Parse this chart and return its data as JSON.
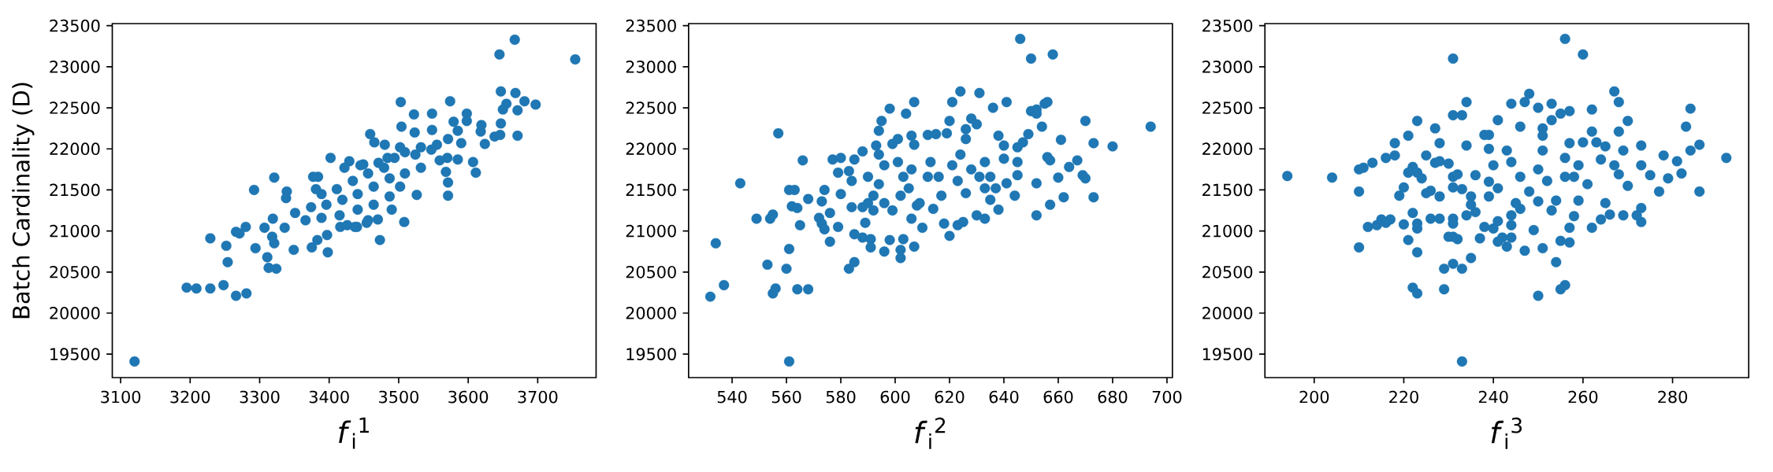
{
  "chart_data": [
    {
      "type": "scatter",
      "xlabel": "*f*$_{i}$$^{1}$",
      "ylabel": "Batch Cardinality (D)",
      "color": "#1f77b4",
      "marker": "circle",
      "xlim": [
        3088,
        3784
      ],
      "ylim": [
        19214,
        23526
      ],
      "xticks": [
        3100,
        3200,
        3300,
        3400,
        3500,
        3600,
        3700
      ],
      "yticks": [
        19500,
        20000,
        20500,
        21000,
        21500,
        22000,
        22500,
        23000,
        23500
      ],
      "x": [
        3120,
        3754,
        3667,
        3645,
        3647,
        3668,
        3697,
        3681,
        3671,
        3655,
        3650,
        3647,
        3646,
        3638,
        3671,
        3624,
        3618,
        3619,
        3607,
        3611,
        3598,
        3598,
        3574,
        3579,
        3585,
        3590,
        3585,
        3571,
        3568,
        3571,
        3571,
        3548,
        3548,
        3522,
        3503,
        3504,
        3523,
        3526,
        3508,
        3490,
        3473,
        3459,
        3480,
        3465,
        3402,
        3440,
        3454,
        3470,
        3398,
        3349,
        3375,
        3383,
        3397,
        3416,
        3324,
        3313,
        3311,
        3321,
        3318,
        3307,
        3319,
        3321,
        3339,
        3338,
        3336,
        3292,
        3294,
        3280,
        3271,
        3266,
        3229,
        3252,
        3254,
        3248,
        3229,
        3209,
        3195,
        3266,
        3281,
        3384,
        3377,
        3484,
        3429,
        3449,
        3471,
        3494,
        3509,
        3532,
        3555,
        3559,
        3532,
        3509,
        3487,
        3464,
        3441,
        3419,
        3396,
        3374,
        3351,
        3366,
        3389,
        3415,
        3441,
        3464,
        3487,
        3502,
        3479,
        3456,
        3434,
        3411,
        3389,
        3381,
        3422,
        3445,
        3524,
        3502,
        3570,
        3547,
        3426,
        3456,
        3437
      ],
      "values": [
        19410,
        23090,
        23330,
        23150,
        22700,
        22680,
        22540,
        22580,
        22470,
        22550,
        22480,
        22310,
        22170,
        22150,
        22160,
        22060,
        22210,
        22290,
        21840,
        21710,
        22430,
        22340,
        22580,
        22330,
        22220,
        22070,
        21870,
        22120,
        21720,
        21590,
        21430,
        22430,
        22230,
        22420,
        22570,
        22270,
        22200,
        21440,
        21110,
        21260,
        20890,
        22180,
        22050,
        22080,
        21890,
        21050,
        21100,
        21140,
        20740,
        20770,
        20800,
        20890,
        20950,
        21050,
        20540,
        20550,
        20680,
        20850,
        20930,
        21040,
        21150,
        21650,
        21480,
        21400,
        21040,
        21500,
        20790,
        21050,
        20970,
        20990,
        20910,
        20820,
        20620,
        20340,
        20300,
        20300,
        20310,
        20210,
        20240,
        21660,
        21660,
        21890,
        21850,
        21810,
        21830,
        21890,
        21960,
        22020,
        22050,
        21860,
        21770,
        21700,
        21640,
        21540,
        21450,
        21380,
        21320,
        21290,
        21220,
        21130,
        21160,
        21190,
        21260,
        21320,
        21420,
        21540,
        21770,
        21700,
        21610,
        21510,
        21450,
        21510,
        21770,
        21800,
        21930,
        22020,
        21890,
        21990,
        21070,
        21130,
        21050
      ]
    },
    {
      "type": "scatter",
      "xlabel": "*f*$_{i}$$^{2}$",
      "color": "#1f77b4",
      "marker": "circle",
      "xlim": [
        524,
        702
      ],
      "ylim": [
        19214,
        23526
      ],
      "xticks": [
        540,
        560,
        580,
        600,
        620,
        640,
        660,
        680,
        700
      ],
      "yticks": [
        19500,
        20000,
        20500,
        21000,
        21500,
        22000,
        22500,
        23000,
        23500
      ],
      "x": [
        561,
        532,
        534,
        537,
        543,
        549,
        554,
        555,
        553,
        555,
        556,
        557,
        560,
        561,
        561,
        563,
        562,
        564,
        564,
        568,
        565,
        566,
        568,
        572,
        573,
        574,
        576,
        574,
        573,
        576,
        577,
        580,
        579,
        579,
        580,
        583,
        584,
        584,
        583,
        585,
        585,
        585,
        588,
        588,
        591,
        590,
        590,
        591,
        589,
        593,
        595,
        594,
        596,
        598,
        598,
        599,
        601,
        602,
        602,
        604,
        603,
        607,
        607,
        610,
        608,
        606,
        607,
        612,
        615,
        619,
        620,
        621,
        624,
        631,
        630,
        628,
        626,
        626,
        620,
        618,
        623,
        625,
        626,
        630,
        633,
        636,
        641,
        638,
        640,
        640,
        638,
        641,
        644,
        645,
        645,
        645,
        647,
        649,
        646,
        650,
        658,
        650,
        652,
        652,
        655,
        656,
        654,
        652,
        652,
        656,
        657,
        657,
        660,
        662,
        661,
        664,
        667,
        669,
        670,
        670,
        673,
        673,
        680,
        694,
        594,
        596,
        601,
        603,
        605,
        606,
        602,
        599,
        606,
        609,
        612,
        613,
        616,
        617,
        614,
        621,
        624,
        623,
        628,
        631,
        633,
        635,
        635,
        633,
        637,
        592,
        592,
        588,
        596,
        594
      ],
      "values": [
        19410,
        20200,
        20850,
        20340,
        21580,
        21150,
        21150,
        21200,
        20590,
        20240,
        20300,
        22190,
        20540,
        20780,
        21500,
        21500,
        21300,
        21280,
        20290,
        20290,
        21070,
        21860,
        21390,
        21160,
        21090,
        21020,
        20870,
        21500,
        21360,
        21220,
        21870,
        21890,
        21710,
        21050,
        21450,
        21730,
        21610,
        21290,
        20540,
        20620,
        20960,
        21870,
        21970,
        20920,
        20900,
        21660,
        21340,
        20800,
        21100,
        22040,
        22340,
        22220,
        20750,
        20890,
        22490,
        22060,
        22120,
        20770,
        20670,
        22430,
        20900,
        22570,
        20810,
        21040,
        21310,
        22160,
        22050,
        22170,
        22180,
        22190,
        22340,
        22570,
        22700,
        22680,
        22300,
        22370,
        22240,
        22120,
        20940,
        21090,
        21070,
        21110,
        21460,
        21190,
        21150,
        22500,
        22570,
        22160,
        22040,
        21880,
        21260,
        21580,
        21430,
        21680,
        21840,
        22020,
        22080,
        22180,
        23340,
        23100,
        23150,
        22460,
        22480,
        22430,
        22550,
        22570,
        22270,
        21580,
        21190,
        21900,
        21860,
        21320,
        21650,
        21410,
        22110,
        21780,
        21860,
        21680,
        21640,
        22340,
        22070,
        21410,
        22030,
        22270,
        21570,
        21340,
        21840,
        21660,
        21520,
        21750,
        21430,
        21250,
        21150,
        21340,
        21660,
        21840,
        21660,
        21430,
        21270,
        21800,
        21930,
        21610,
        21750,
        21660,
        21520,
        21380,
        21660,
        21840,
        21520,
        21430,
        21250,
        21290,
        21800,
        21930
      ]
    },
    {
      "type": "scatter",
      "xlabel": "*f*$_{i}$$^{3}$",
      "color": "#1f77b4",
      "marker": "circle",
      "xlim": [
        189,
        297
      ],
      "ylim": [
        19214,
        23526
      ],
      "xticks": [
        200,
        220,
        240,
        260,
        280
      ],
      "yticks": [
        19500,
        20000,
        20500,
        21000,
        21500,
        22000,
        22500,
        23000,
        23500
      ],
      "x": [
        233,
        194,
        204,
        210,
        211,
        213,
        210,
        210,
        212,
        214,
        215,
        217,
        216,
        216,
        218,
        218,
        221,
        219,
        220,
        220,
        221,
        222,
        223,
        223,
        223,
        223,
        223,
        222,
        221,
        222,
        223,
        224,
        225,
        226,
        225,
        226,
        227,
        228,
        227,
        228,
        230,
        228,
        229,
        229,
        230,
        231,
        231,
        233,
        235,
        232,
        231,
        231,
        231,
        231,
        233,
        234,
        234,
        231,
        232,
        231,
        228,
        234,
        236,
        237,
        238,
        236,
        238,
        239,
        241,
        239,
        240,
        239,
        239,
        240,
        241,
        242,
        243,
        241,
        244,
        244,
        244,
        244,
        246,
        247,
        248,
        250,
        247,
        249,
        250,
        251,
        250,
        253,
        253,
        255,
        257,
        254,
        255,
        256,
        255,
        257,
        257,
        256,
        260,
        251,
        251,
        258,
        259,
        261,
        262,
        262,
        260,
        262,
        264,
        266,
        263,
        265,
        268,
        267,
        268,
        270,
        269,
        269,
        270,
        273,
        273,
        275,
        273,
        273,
        272,
        277,
        278,
        279,
        281,
        282,
        283,
        284,
        284,
        286,
        286,
        292,
        241,
        244,
        246,
        248,
        250,
        251,
        252,
        254,
        256,
        256,
        257,
        258,
        259,
        253,
        246,
        245,
        243,
        235,
        235,
        233,
        264,
        265,
        267,
        268
      ],
      "values": [
        19410,
        21670,
        21650,
        21750,
        21770,
        21830,
        21480,
        20800,
        21050,
        21070,
        21140,
        21140,
        21100,
        21890,
        21920,
        22070,
        22160,
        21430,
        21530,
        21080,
        20890,
        20310,
        20240,
        20740,
        21030,
        21090,
        22340,
        21220,
        21710,
        21780,
        21710,
        21640,
        21920,
        21150,
        21460,
        21490,
        22250,
        22070,
        21830,
        21850,
        21820,
        21150,
        20540,
        20290,
        20930,
        20930,
        20600,
        20540,
        20670,
        20900,
        21150,
        21090,
        23100,
        22410,
        22410,
        22570,
        22040,
        21660,
        21690,
        21530,
        21420,
        21190,
        21230,
        20910,
        21050,
        21680,
        22170,
        22170,
        22350,
        22000,
        21800,
        21600,
        21420,
        21030,
        20870,
        20920,
        20810,
        21120,
        20920,
        21070,
        21190,
        22550,
        22270,
        22570,
        22670,
        22500,
        20760,
        21010,
        20210,
        20790,
        21360,
        22350,
        22550,
        22430,
        22460,
        20620,
        20290,
        20340,
        20880,
        20860,
        21040,
        23340,
        23150,
        22250,
        22160,
        21180,
        21370,
        21570,
        22480,
        22210,
        22080,
        21040,
        21140,
        21200,
        22080,
        22030,
        22570,
        22700,
        22210,
        22340,
        21980,
        21190,
        21550,
        22040,
        21800,
        21680,
        21110,
        21280,
        21190,
        21480,
        21920,
        21640,
        21850,
        21700,
        22270,
        22490,
        21980,
        22050,
        21480,
        21890,
        21520,
        21840,
        21660,
        21480,
        21750,
        21980,
        21610,
        21370,
        21660,
        21890,
        22070,
        21660,
        21800,
        21250,
        21270,
        21340,
        21980,
        21420,
        21320,
        21510,
        21870,
        21340,
        21800,
        21690
      ]
    }
  ]
}
